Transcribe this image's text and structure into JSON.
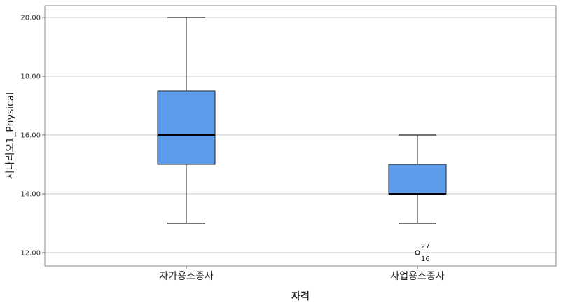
{
  "chart_data": {
    "type": "boxplot",
    "title": "",
    "xlabel": "자격",
    "ylabel": "시나리오1_Physical",
    "ylim": [
      11.5,
      20.3
    ],
    "yticks": [
      12,
      14,
      16,
      18,
      20
    ],
    "ytick_labels": [
      "12.00",
      "14.00",
      "16.00",
      "18.00",
      "20.00"
    ],
    "grid": "horizontal",
    "box_color": "#5b9bea",
    "categories": [
      "자가용조종사",
      "사업용조종사"
    ],
    "boxes": [
      {
        "category": "자가용조종사",
        "min": 13,
        "q1": 15,
        "median": 16,
        "q3": 17.5,
        "max": 20,
        "outliers": []
      },
      {
        "category": "사업용조종사",
        "min": 13,
        "q1": 14,
        "median": 14,
        "q3": 15,
        "max": 16,
        "outliers": [
          {
            "value": 12,
            "labels": [
              "27",
              "16"
            ]
          }
        ]
      }
    ]
  }
}
